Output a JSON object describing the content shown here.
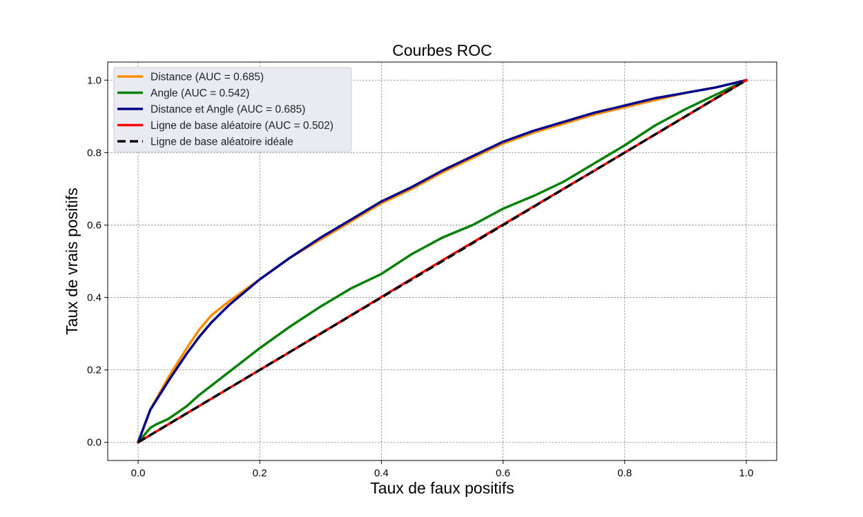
{
  "chart_data": {
    "type": "line",
    "title": "Courbes ROC",
    "xlabel": "Taux de faux positifs",
    "ylabel": "Taux de vrais positifs",
    "xlim": [
      -0.05,
      1.05
    ],
    "ylim": [
      -0.05,
      1.05
    ],
    "xticks": [
      "0.0",
      "0.2",
      "0.4",
      "0.6",
      "0.8",
      "1.0"
    ],
    "yticks": [
      "0.0",
      "0.2",
      "0.4",
      "0.6",
      "0.8",
      "1.0"
    ],
    "grid": true,
    "legend_position": "upper-left",
    "series": [
      {
        "name": "Distance (AUC = 0.685)",
        "color": "#ff8c00",
        "style": "solid",
        "x": [
          0,
          0.02,
          0.05,
          0.08,
          0.1,
          0.12,
          0.15,
          0.2,
          0.25,
          0.3,
          0.35,
          0.4,
          0.45,
          0.5,
          0.55,
          0.6,
          0.65,
          0.7,
          0.75,
          0.8,
          0.85,
          0.9,
          0.95,
          1.0
        ],
        "y": [
          0,
          0.09,
          0.18,
          0.26,
          0.31,
          0.35,
          0.39,
          0.45,
          0.51,
          0.56,
          0.61,
          0.66,
          0.7,
          0.745,
          0.785,
          0.825,
          0.855,
          0.88,
          0.905,
          0.925,
          0.945,
          0.965,
          0.98,
          1.0
        ]
      },
      {
        "name": "Angle (AUC = 0.542)",
        "color": "#008000",
        "style": "solid",
        "x": [
          0,
          0.02,
          0.03,
          0.05,
          0.08,
          0.1,
          0.15,
          0.2,
          0.25,
          0.3,
          0.35,
          0.4,
          0.45,
          0.5,
          0.55,
          0.6,
          0.65,
          0.7,
          0.75,
          0.8,
          0.85,
          0.9,
          0.95,
          1.0
        ],
        "y": [
          0,
          0.04,
          0.05,
          0.065,
          0.1,
          0.13,
          0.195,
          0.26,
          0.32,
          0.375,
          0.425,
          0.465,
          0.52,
          0.565,
          0.6,
          0.645,
          0.68,
          0.72,
          0.77,
          0.82,
          0.875,
          0.92,
          0.96,
          1.0
        ]
      },
      {
        "name": "Distance et Angle (AUC = 0.685)",
        "color": "#00008b",
        "style": "solid",
        "x": [
          0,
          0.02,
          0.05,
          0.08,
          0.1,
          0.12,
          0.15,
          0.2,
          0.25,
          0.3,
          0.35,
          0.4,
          0.45,
          0.5,
          0.55,
          0.6,
          0.65,
          0.7,
          0.75,
          0.8,
          0.85,
          0.9,
          0.95,
          1.0
        ],
        "y": [
          0,
          0.09,
          0.17,
          0.245,
          0.29,
          0.33,
          0.38,
          0.45,
          0.51,
          0.565,
          0.615,
          0.665,
          0.705,
          0.75,
          0.79,
          0.83,
          0.86,
          0.885,
          0.91,
          0.93,
          0.95,
          0.965,
          0.98,
          1.0
        ]
      },
      {
        "name": "Ligne de base aléatoire (AUC = 0.502)",
        "color": "#ff0000",
        "style": "solid",
        "x": [
          0,
          0.25,
          0.5,
          0.75,
          1.0
        ],
        "y": [
          0,
          0.25,
          0.502,
          0.75,
          1.0
        ]
      },
      {
        "name": "Ligne de base aléatoire idéale",
        "color": "#000000",
        "style": "dashed",
        "x": [
          0,
          1.0
        ],
        "y": [
          0,
          1.0
        ]
      }
    ]
  }
}
